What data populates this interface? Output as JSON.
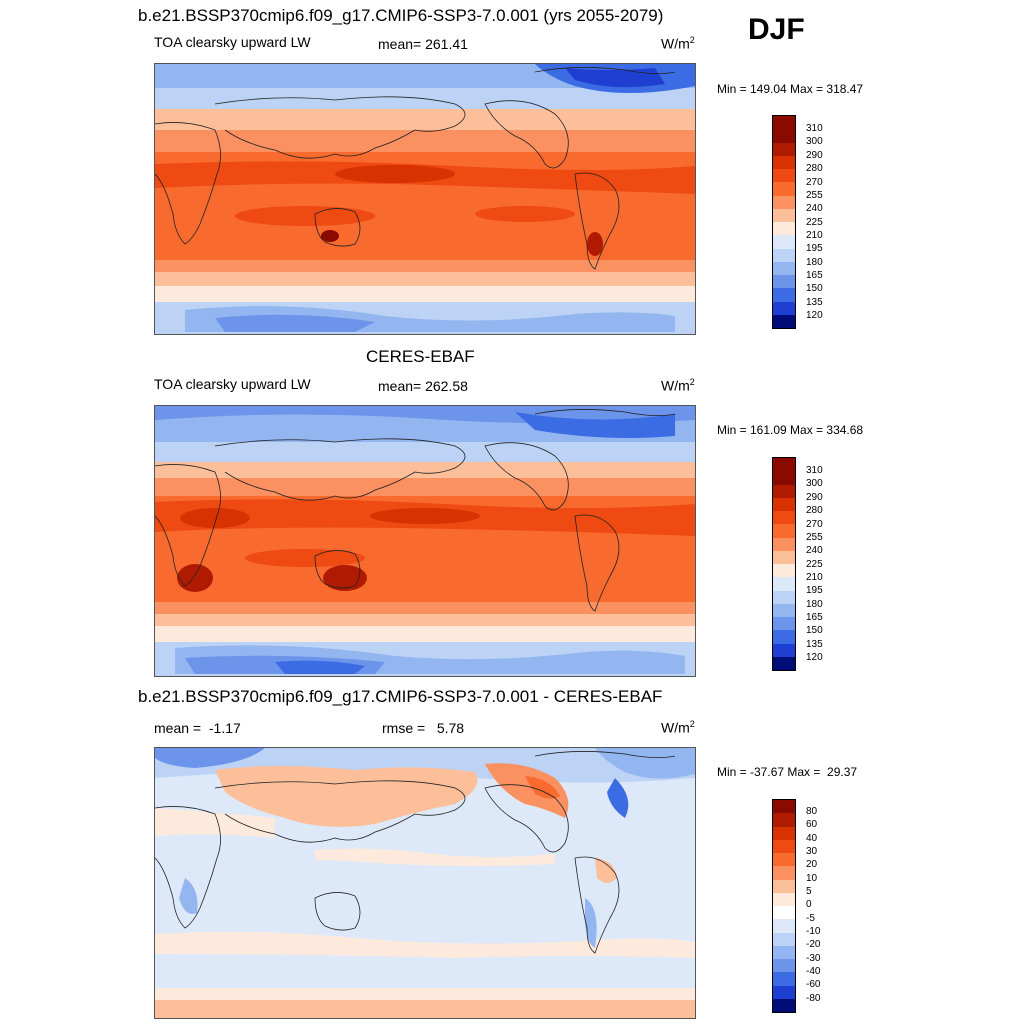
{
  "season": "DJF",
  "panels": [
    {
      "title": "b.e21.BSSP370cmip6.f09_g17.CMIP6-SSP3-7.0.001 (yrs 2055-2079)",
      "left": "TOA clearsky upward LW",
      "center": "mean= 261.41",
      "units_base": "W/m",
      "units_exp": "2",
      "minmax": "Min = 149.04 Max = 318.47",
      "levels": [
        "310",
        "300",
        "290",
        "280",
        "270",
        "255",
        "240",
        "225",
        "210",
        "195",
        "180",
        "165",
        "150",
        "135",
        "120"
      ]
    },
    {
      "title": "CERES-EBAF",
      "left": "TOA clearsky upward LW",
      "center": "mean= 262.58",
      "units_base": "W/m",
      "units_exp": "2",
      "minmax": "Min = 161.09 Max = 334.68",
      "levels": [
        "310",
        "300",
        "290",
        "280",
        "270",
        "255",
        "240",
        "225",
        "210",
        "195",
        "180",
        "165",
        "150",
        "135",
        "120"
      ]
    },
    {
      "title": "b.e21.BSSP370cmip6.f09_g17.CMIP6-SSP3-7.0.001 - CERES-EBAF",
      "left": "mean =  -1.17",
      "center": "rmse =   5.78",
      "units_base": "W/m",
      "units_exp": "2",
      "minmax": "Min = -37.67 Max =  29.37",
      "levels": [
        "80",
        "60",
        "40",
        "30",
        "20",
        "10",
        "5",
        "0",
        "-5",
        "-10",
        "-20",
        "-30",
        "-40",
        "-60",
        "-80"
      ]
    }
  ],
  "colors": {
    "abs_scale": [
      "#8b0a00",
      "#b01a00",
      "#d83200",
      "#ee4a12",
      "#f86a2e",
      "#fb9060",
      "#fdbf9a",
      "#feeadc",
      "#dde9f9",
      "#bcd3f5",
      "#93b5f0",
      "#6c94ea",
      "#3c6ce4",
      "#1f3fd0",
      "#0c1d9e",
      "#000c78"
    ],
    "diff_scale": [
      "#8b0a00",
      "#b01a00",
      "#d83200",
      "#ee4a12",
      "#f86a2e",
      "#fb9060",
      "#fdbf9a",
      "#feeadc",
      "#ffffff",
      "#dde9f9",
      "#bcd3f5",
      "#93b5f0",
      "#6c94ea",
      "#3c6ce4",
      "#1f3fd0",
      "#000c78"
    ]
  }
}
